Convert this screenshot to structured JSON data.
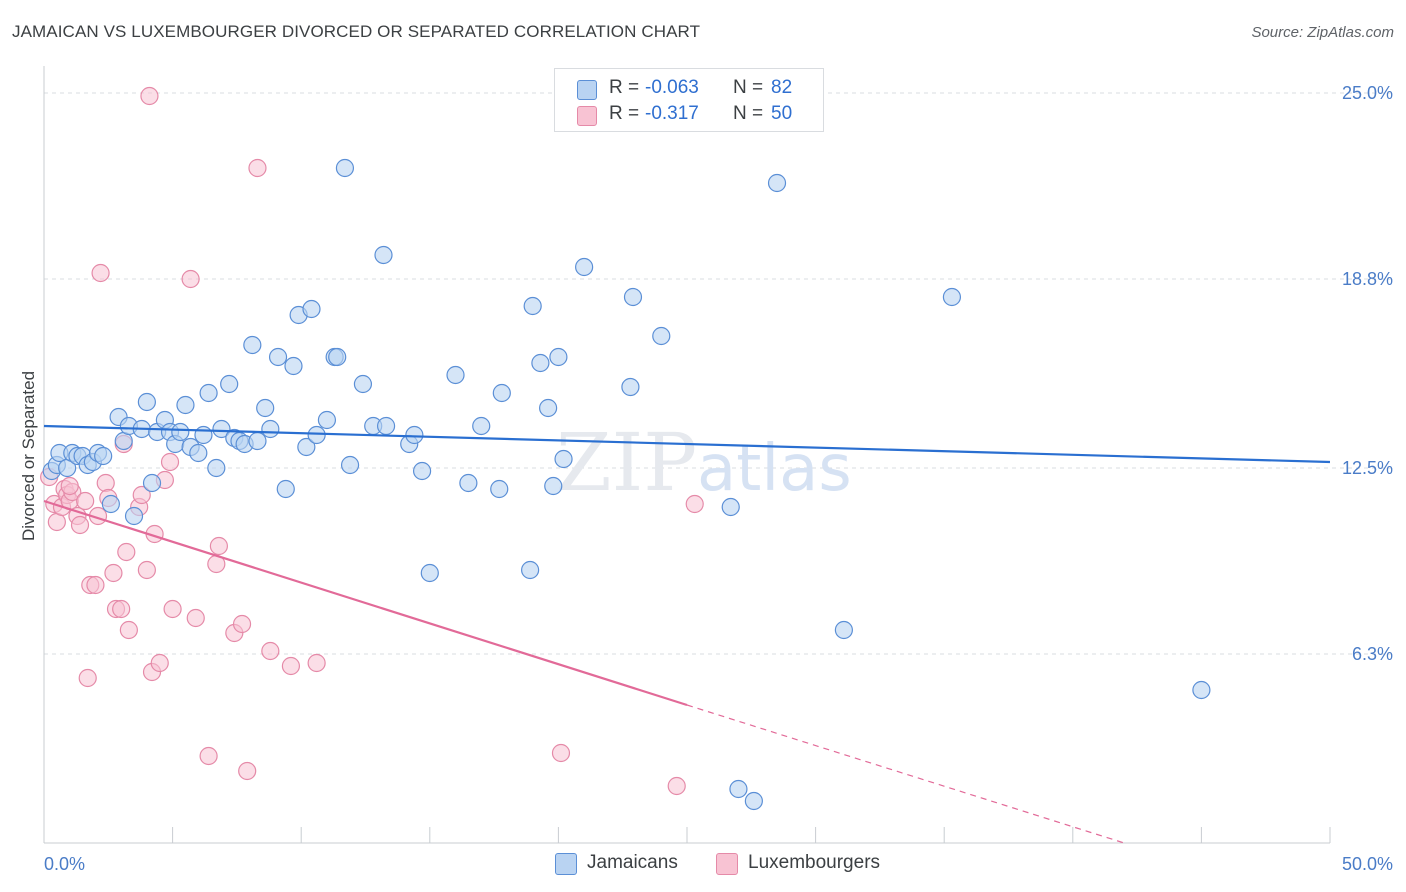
{
  "title": "JAMAICAN VS LUXEMBOURGER DIVORCED OR SEPARATED CORRELATION CHART",
  "source": "Source: ZipAtlas.com",
  "watermark": "ZIPatlas",
  "legend": {
    "series1": {
      "r_label": "R =",
      "r_value": "-0.063",
      "n_label": "N =",
      "n_value": "82"
    },
    "series2": {
      "r_label": "R =",
      "r_value": "-0.317",
      "n_label": "N =",
      "n_value": "50"
    }
  },
  "bottom_legend": {
    "series1": "Jamaicans",
    "series2": "Luxembourgers"
  },
  "colors": {
    "blue_fill": "#b9d3f2",
    "blue_stroke": "#5b8fd6",
    "blue_line": "#2a6fd1",
    "pink_fill": "#f8c3d3",
    "pink_stroke": "#e58aa8",
    "pink_line": "#e26a98",
    "grid": "#d9dce0",
    "tick_text": "#4a7cc7"
  },
  "chart_data": {
    "type": "scatter",
    "title": "JAMAICAN VS LUXEMBOURGER DIVORCED OR SEPARATED CORRELATION CHART",
    "xlabel": "",
    "ylabel": "Divorced or Separated",
    "xlim": [
      0,
      50
    ],
    "ylim": [
      0,
      25.5
    ],
    "x_tick_labels": [
      "0.0%",
      "50.0%"
    ],
    "y_ticks": [
      6.3,
      12.5,
      18.8,
      25.0
    ],
    "y_tick_labels": [
      "6.3%",
      "12.5%",
      "18.8%",
      "25.0%"
    ],
    "series": [
      {
        "name": "Jamaicans",
        "r": -0.063,
        "n": 82,
        "trend": {
          "x": [
            0,
            50
          ],
          "y": [
            13.9,
            12.7
          ]
        },
        "points": [
          [
            0.3,
            12.4
          ],
          [
            0.5,
            12.6
          ],
          [
            0.6,
            13.0
          ],
          [
            0.9,
            12.5
          ],
          [
            1.1,
            13.0
          ],
          [
            1.3,
            12.9
          ],
          [
            1.5,
            12.9
          ],
          [
            1.7,
            12.6
          ],
          [
            1.9,
            12.7
          ],
          [
            2.1,
            13.0
          ],
          [
            2.3,
            12.9
          ],
          [
            2.6,
            11.3
          ],
          [
            2.9,
            14.2
          ],
          [
            3.1,
            13.4
          ],
          [
            3.3,
            13.9
          ],
          [
            3.5,
            10.9
          ],
          [
            3.8,
            13.8
          ],
          [
            4.0,
            14.7
          ],
          [
            4.2,
            12.0
          ],
          [
            4.4,
            13.7
          ],
          [
            4.7,
            14.1
          ],
          [
            4.9,
            13.7
          ],
          [
            5.1,
            13.3
          ],
          [
            5.3,
            13.7
          ],
          [
            5.5,
            14.6
          ],
          [
            5.7,
            13.2
          ],
          [
            6.0,
            13.0
          ],
          [
            6.2,
            13.6
          ],
          [
            6.4,
            15.0
          ],
          [
            6.7,
            12.5
          ],
          [
            6.9,
            13.8
          ],
          [
            7.2,
            15.3
          ],
          [
            7.4,
            13.5
          ],
          [
            7.6,
            13.4
          ],
          [
            7.8,
            13.3
          ],
          [
            8.1,
            16.6
          ],
          [
            8.3,
            13.4
          ],
          [
            8.6,
            14.5
          ],
          [
            8.8,
            13.8
          ],
          [
            9.1,
            16.2
          ],
          [
            9.4,
            11.8
          ],
          [
            9.7,
            15.9
          ],
          [
            9.9,
            17.6
          ],
          [
            10.2,
            13.2
          ],
          [
            10.4,
            17.8
          ],
          [
            10.6,
            13.6
          ],
          [
            11.0,
            14.1
          ],
          [
            11.3,
            16.2
          ],
          [
            11.4,
            16.2
          ],
          [
            11.7,
            22.5
          ],
          [
            11.9,
            12.6
          ],
          [
            12.4,
            15.3
          ],
          [
            12.8,
            13.9
          ],
          [
            13.2,
            19.6
          ],
          [
            13.3,
            13.9
          ],
          [
            14.2,
            13.3
          ],
          [
            14.4,
            13.6
          ],
          [
            14.7,
            12.4
          ],
          [
            15.0,
            9.0
          ],
          [
            16.0,
            15.6
          ],
          [
            16.5,
            12.0
          ],
          [
            17.0,
            13.9
          ],
          [
            17.7,
            11.8
          ],
          [
            17.8,
            15.0
          ],
          [
            18.9,
            9.1
          ],
          [
            19.0,
            17.9
          ],
          [
            19.3,
            16.0
          ],
          [
            19.6,
            14.5
          ],
          [
            19.8,
            11.9
          ],
          [
            20.0,
            16.2
          ],
          [
            20.2,
            12.8
          ],
          [
            21.0,
            19.2
          ],
          [
            22.8,
            15.2
          ],
          [
            22.9,
            18.2
          ],
          [
            24.0,
            16.9
          ],
          [
            26.7,
            11.2
          ],
          [
            27.0,
            1.8
          ],
          [
            27.6,
            1.4
          ],
          [
            28.5,
            22.0
          ],
          [
            31.1,
            7.1
          ],
          [
            35.3,
            18.2
          ],
          [
            45.0,
            5.1
          ]
        ]
      },
      {
        "name": "Luxembourgers",
        "r": -0.317,
        "n": 50,
        "trend": {
          "x": [
            0,
            25
          ],
          "y": [
            11.4,
            4.6
          ]
        },
        "trend_dashed": {
          "x": [
            25,
            42
          ],
          "y": [
            4.6,
            0.0
          ]
        },
        "points": [
          [
            0.2,
            12.2
          ],
          [
            0.4,
            11.3
          ],
          [
            0.5,
            10.7
          ],
          [
            0.7,
            11.2
          ],
          [
            0.8,
            11.8
          ],
          [
            0.9,
            11.6
          ],
          [
            1.0,
            11.4
          ],
          [
            1.1,
            11.7
          ],
          [
            1.3,
            10.9
          ],
          [
            1.4,
            10.6
          ],
          [
            1.6,
            11.4
          ],
          [
            1.7,
            5.5
          ],
          [
            1.8,
            8.6
          ],
          [
            2.0,
            8.6
          ],
          [
            2.1,
            10.9
          ],
          [
            2.2,
            19.0
          ],
          [
            2.4,
            12.0
          ],
          [
            2.5,
            11.5
          ],
          [
            2.7,
            9.0
          ],
          [
            2.8,
            7.8
          ],
          [
            3.0,
            7.8
          ],
          [
            3.1,
            13.3
          ],
          [
            3.2,
            9.7
          ],
          [
            3.3,
            7.1
          ],
          [
            3.7,
            11.2
          ],
          [
            3.8,
            11.6
          ],
          [
            4.0,
            9.1
          ],
          [
            4.2,
            5.7
          ],
          [
            4.3,
            10.3
          ],
          [
            4.5,
            6.0
          ],
          [
            4.7,
            12.1
          ],
          [
            4.9,
            12.7
          ],
          [
            5.0,
            7.8
          ],
          [
            5.7,
            18.8
          ],
          [
            5.9,
            7.5
          ],
          [
            6.4,
            2.9
          ],
          [
            6.7,
            9.3
          ],
          [
            6.8,
            9.9
          ],
          [
            7.4,
            7.0
          ],
          [
            7.7,
            7.3
          ],
          [
            7.9,
            2.4
          ],
          [
            8.3,
            22.5
          ],
          [
            8.8,
            6.4
          ],
          [
            9.6,
            5.9
          ],
          [
            10.6,
            6.0
          ],
          [
            20.1,
            3.0
          ],
          [
            24.6,
            1.9
          ],
          [
            25.3,
            11.3
          ],
          [
            4.1,
            24.9
          ],
          [
            1.0,
            11.9
          ]
        ]
      }
    ]
  }
}
